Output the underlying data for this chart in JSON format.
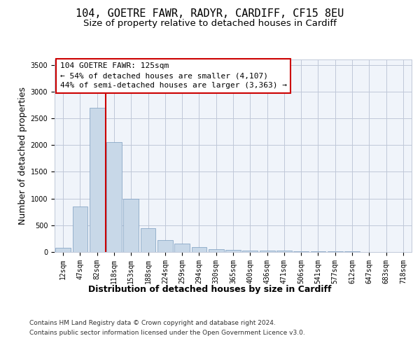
{
  "title_line1": "104, GOETRE FAWR, RADYR, CARDIFF, CF15 8EU",
  "title_line2": "Size of property relative to detached houses in Cardiff",
  "xlabel": "Distribution of detached houses by size in Cardiff",
  "ylabel": "Number of detached properties",
  "categories": [
    "12sqm",
    "47sqm",
    "82sqm",
    "118sqm",
    "153sqm",
    "188sqm",
    "224sqm",
    "259sqm",
    "294sqm",
    "330sqm",
    "365sqm",
    "400sqm",
    "436sqm",
    "471sqm",
    "506sqm",
    "541sqm",
    "577sqm",
    "612sqm",
    "647sqm",
    "683sqm",
    "718sqm"
  ],
  "values": [
    75,
    850,
    2700,
    2060,
    1000,
    450,
    220,
    155,
    90,
    55,
    40,
    30,
    25,
    20,
    15,
    12,
    10,
    8,
    6,
    5,
    4
  ],
  "bar_color": "#c8d8e8",
  "bar_edge_color": "#7a9cbf",
  "grid_color": "#c0c8d8",
  "background_color": "#f0f4fa",
  "vline_color": "#cc0000",
  "vline_x": 2.5,
  "annotation_text": "104 GOETRE FAWR: 125sqm\n← 54% of detached houses are smaller (4,107)\n44% of semi-detached houses are larger (3,363) →",
  "annotation_box_color": "#ffffff",
  "annotation_border_color": "#cc0000",
  "ylim": [
    0,
    3600
  ],
  "yticks": [
    0,
    500,
    1000,
    1500,
    2000,
    2500,
    3000,
    3500
  ],
  "footnote_line1": "Contains HM Land Registry data © Crown copyright and database right 2024.",
  "footnote_line2": "Contains public sector information licensed under the Open Government Licence v3.0.",
  "title_fontsize": 11,
  "subtitle_fontsize": 9.5,
  "axis_label_fontsize": 9,
  "tick_fontsize": 7,
  "annotation_fontsize": 8,
  "footnote_fontsize": 6.5
}
